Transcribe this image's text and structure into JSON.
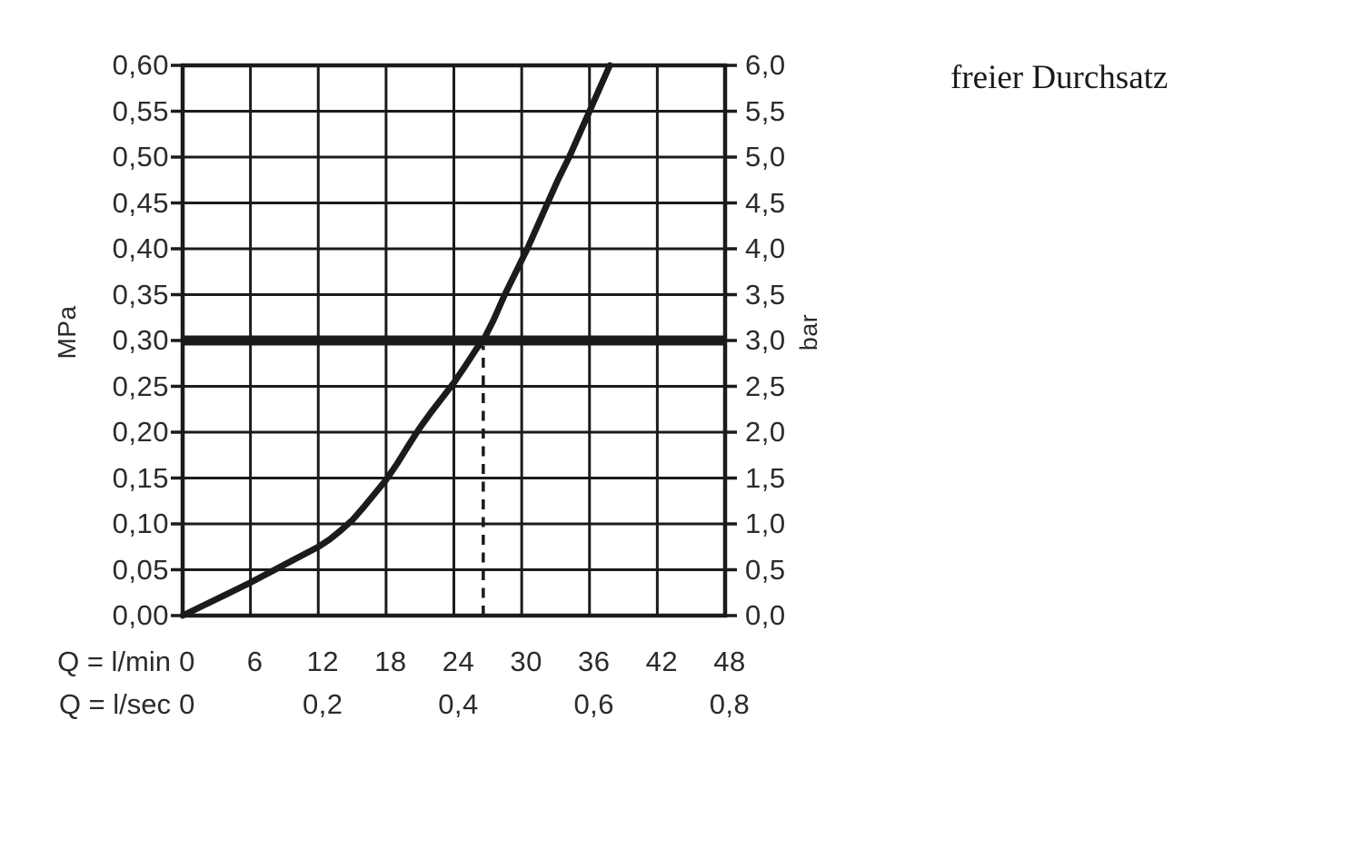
{
  "chart_data": {
    "type": "line",
    "title": "freier Durchsatz",
    "grid": true,
    "line_color": "#1b1b1b",
    "text_color": "#2b2b2b",
    "left_axis": {
      "unit": "MPa",
      "min": 0,
      "max": 0.6,
      "step": 0.05,
      "tick_labels": [
        "0,00",
        "0,05",
        "0,10",
        "0,15",
        "0,20",
        "0,25",
        "0,30",
        "0,35",
        "0,40",
        "0,45",
        "0,50",
        "0,55",
        "0,60"
      ]
    },
    "right_axis": {
      "unit": "bar",
      "min": 0,
      "max": 6,
      "step": 0.5,
      "tick_labels": [
        "0,0",
        "0,5",
        "1,0",
        "1,5",
        "2,0",
        "2,5",
        "3,0",
        "3,5",
        "4,0",
        "4,5",
        "5,0",
        "5,5",
        "6,0"
      ]
    },
    "x_axis_primary": {
      "unit_label": "Q = l/min",
      "min": 0,
      "max": 48,
      "step": 6,
      "tick_labels": [
        "0",
        "6",
        "12",
        "18",
        "24",
        "30",
        "36",
        "42",
        "48"
      ]
    },
    "x_axis_secondary": {
      "unit_label": "Q = l/sec",
      "tick_labels": [
        "0",
        "0,2",
        "0,4",
        "0,6",
        "0,8"
      ],
      "tick_positions_lmin": [
        0,
        12,
        24,
        36,
        48
      ]
    },
    "series": [
      {
        "name": "pressure-loss-curve",
        "points_lmin_mpa": [
          [
            0,
            0.0
          ],
          [
            2,
            0.012
          ],
          [
            4,
            0.024
          ],
          [
            6,
            0.036
          ],
          [
            8,
            0.049
          ],
          [
            10,
            0.062
          ],
          [
            12,
            0.075
          ],
          [
            13,
            0.083
          ],
          [
            14,
            0.093
          ],
          [
            15,
            0.104
          ],
          [
            16,
            0.118
          ],
          [
            17,
            0.133
          ],
          [
            18,
            0.148
          ],
          [
            19,
            0.166
          ],
          [
            20,
            0.186
          ],
          [
            21,
            0.205
          ],
          [
            22,
            0.222
          ],
          [
            23,
            0.238
          ],
          [
            24,
            0.254
          ],
          [
            25,
            0.272
          ],
          [
            26,
            0.291
          ],
          [
            26.6,
            0.3
          ],
          [
            27.5,
            0.322
          ],
          [
            28.5,
            0.35
          ],
          [
            29.5,
            0.375
          ],
          [
            30.5,
            0.4
          ],
          [
            31.4,
            0.425
          ],
          [
            32.3,
            0.45
          ],
          [
            33.2,
            0.475
          ],
          [
            34.2,
            0.5
          ],
          [
            35.1,
            0.525
          ],
          [
            36,
            0.55
          ],
          [
            36.9,
            0.575
          ],
          [
            37.8,
            0.6
          ]
        ]
      }
    ],
    "reference_line": {
      "value_mpa": 0.3,
      "value_bar": 3.0
    },
    "dashed_marker": {
      "x_lmin": 26.6,
      "from_mpa": 0,
      "to_mpa": 0.294
    }
  }
}
